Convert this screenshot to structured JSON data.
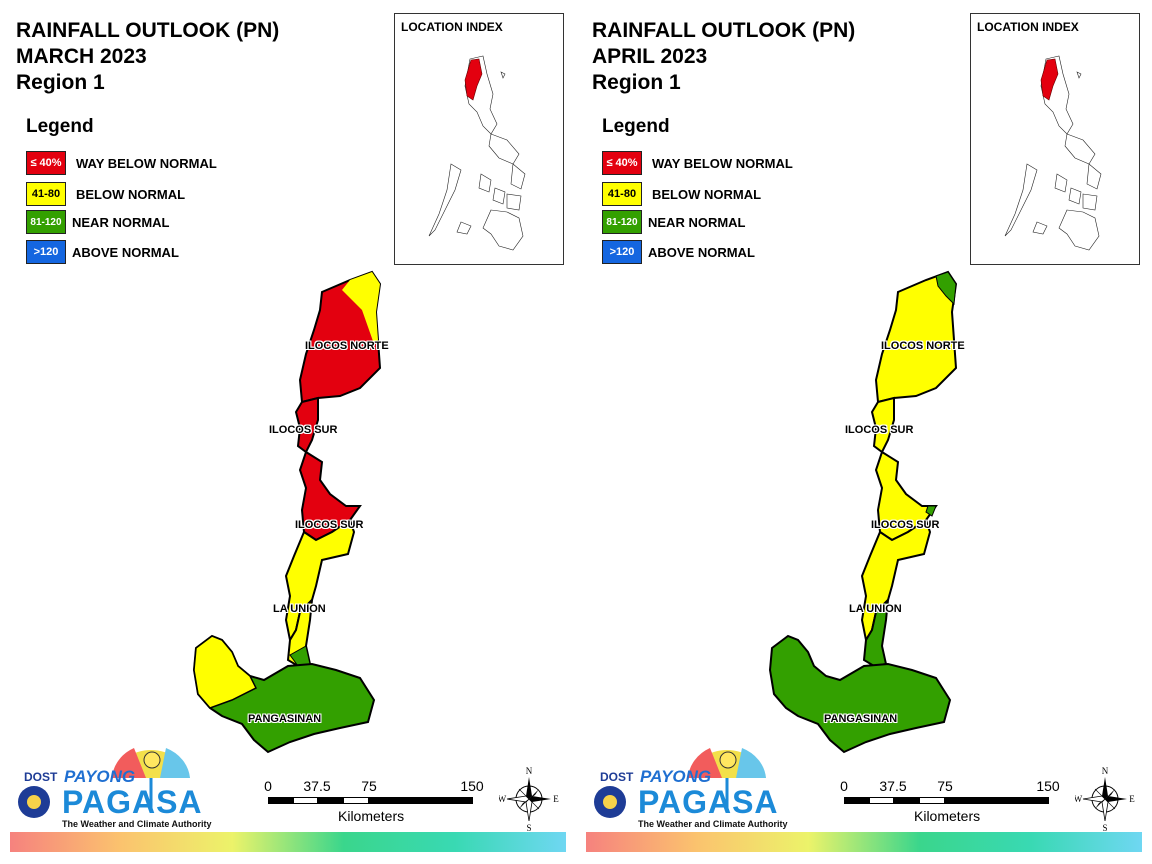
{
  "colors": {
    "way_below": "#e3000f",
    "below": "#ffff00",
    "near": "#33a000",
    "above": "#1466e0"
  },
  "legend": {
    "title": "Legend",
    "items": [
      {
        "code": "≤ 40%",
        "label": "WAY BELOW NORMAL",
        "color": "#e3000f",
        "text_color": "#ffffff"
      },
      {
        "code": "41-80",
        "label": "BELOW NORMAL",
        "color": "#ffff00",
        "text_color": "#000000"
      },
      {
        "code": "81-120",
        "label": "NEAR NORMAL",
        "color": "#33a000",
        "text_color": "#ffffff"
      },
      {
        "code": ">120",
        "label": "ABOVE NORMAL",
        "color": "#1466e0",
        "text_color": "#ffffff"
      }
    ]
  },
  "panels": [
    {
      "title_line1": "RAINFALL OUTLOOK (PN)",
      "title_line2": "MARCH 2023",
      "title_line3": "Region 1",
      "index_title": "LOCATION INDEX",
      "provinces": {
        "ilocos_norte": "ILOCOS NORTE",
        "ilocos_sur_north": "ILOCOS SUR",
        "ilocos_sur_south": "ILOCOS SUR",
        "la_union": "LA UNION",
        "pangasinan": "PANGASINAN"
      }
    },
    {
      "title_line1": "RAINFALL OUTLOOK (PN)",
      "title_line2": "APRIL 2023",
      "title_line3": "Region 1",
      "index_title": "LOCATION INDEX",
      "provinces": {
        "ilocos_norte": "ILOCOS NORTE",
        "ilocos_sur_north": "ILOCOS SUR",
        "ilocos_sur_south": "ILOCOS SUR",
        "la_union": "LA UNION",
        "pangasinan": "PANGASINAN"
      }
    }
  ],
  "scale": {
    "ticks": [
      "0",
      "37.5",
      "75",
      "150"
    ],
    "units": "Kilometers"
  },
  "compass": {
    "n": "N",
    "s": "S",
    "e": "E",
    "w": "W"
  },
  "logo": {
    "dost": "DOST",
    "payong": "PAYONG",
    "pagasa": "PAGASA",
    "tagline": "The Weather and Climate Authority"
  }
}
